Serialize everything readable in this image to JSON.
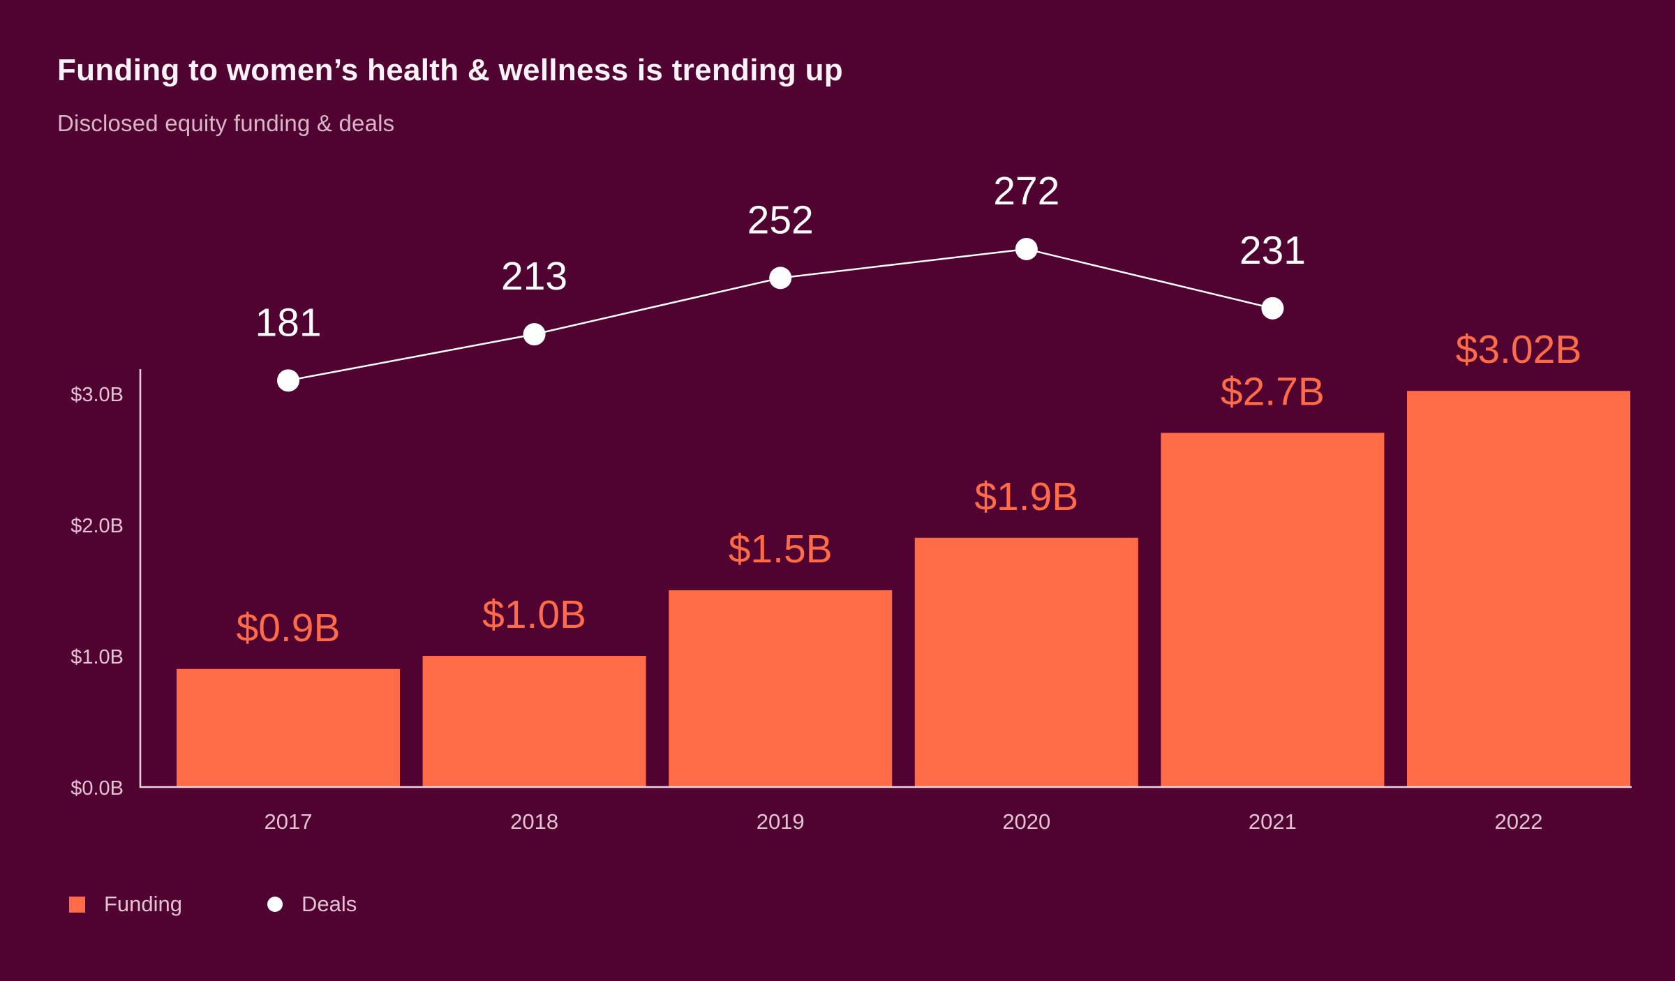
{
  "header": {
    "title": "Funding to women’s health & wellness is trending up",
    "subtitle": "Disclosed equity funding & deals"
  },
  "legend": {
    "funding_label": "Funding",
    "deals_label": "Deals"
  },
  "colors": {
    "background": "#500231",
    "bar": "#FF6C47",
    "bar_label": "#FF6C47",
    "line": "#FFFFFF",
    "point": "#FFFFFF",
    "deals_label": "#FFFFFF",
    "axis_line": "#EBD5DF",
    "axis_text": "#E3C3D3"
  },
  "chart_data": {
    "type": "bar",
    "title": "Funding to women’s health & wellness is trending up",
    "subtitle": "Disclosed equity funding & deals",
    "categories": [
      "2017",
      "2018",
      "2019",
      "2020",
      "2021",
      "2022"
    ],
    "series": [
      {
        "name": "Funding",
        "type": "bar",
        "unit": "$B",
        "values": [
          0.9,
          1.0,
          1.5,
          1.9,
          2.7,
          3.02
        ],
        "labels": [
          "$0.9B",
          "$1.0B",
          "$1.5B",
          "$1.9B",
          "$2.7B",
          "$3.02B"
        ],
        "color": "#FF6C47"
      },
      {
        "name": "Deals",
        "type": "line",
        "values": [
          181,
          213,
          252,
          272,
          231,
          null
        ],
        "labels": [
          "181",
          "213",
          "252",
          "272",
          "231",
          null
        ],
        "color": "#FFFFFF"
      }
    ],
    "xlabel": "",
    "ylabel": "",
    "y_axis": {
      "tick_labels": [
        "$0.0B",
        "$1.0B",
        "$2.0B",
        "$3.0B"
      ],
      "tick_values": [
        0,
        1,
        2,
        3
      ],
      "ylim": [
        0,
        3.2
      ]
    },
    "grid": false,
    "legend_position": "bottom-left"
  }
}
